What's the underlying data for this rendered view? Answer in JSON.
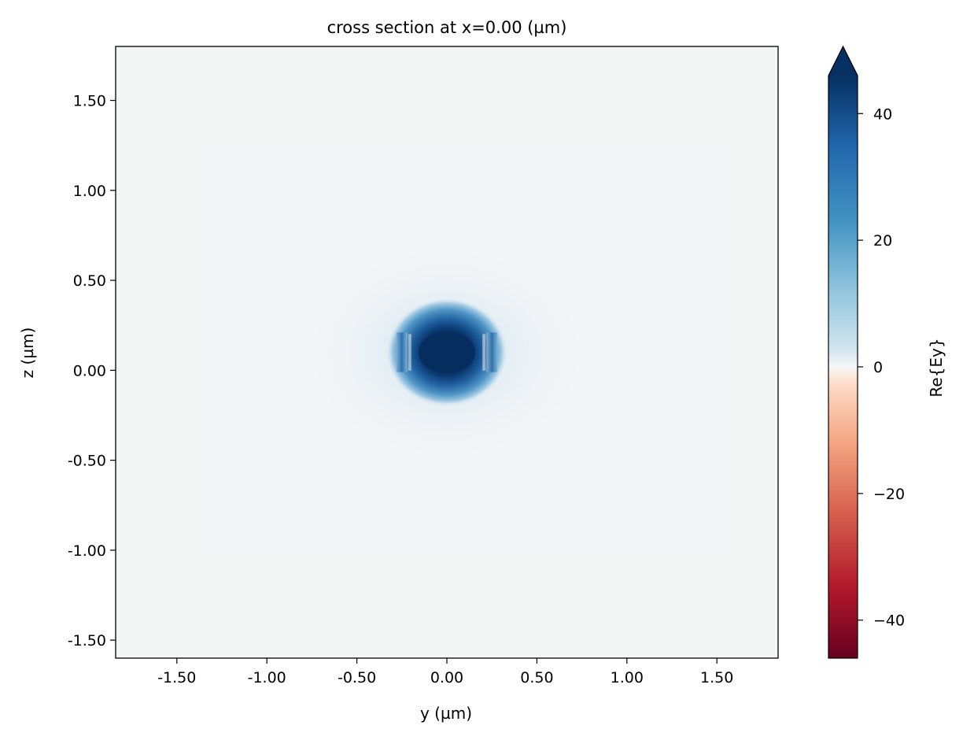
{
  "chart_data": {
    "type": "heatmap",
    "title": "cross section at x=0.00 (µm)",
    "xlabel": "y (µm)",
    "ylabel": "z (µm)",
    "xlim": [
      -1.84,
      1.84
    ],
    "ylim": [
      -1.6,
      1.8
    ],
    "xticks": [
      -1.5,
      -1.0,
      -0.5,
      0.0,
      0.5,
      1.0,
      1.5
    ],
    "xtick_labels": [
      "-1.50",
      "-1.00",
      "-0.50",
      "0.00",
      "0.50",
      "1.00",
      "1.50"
    ],
    "yticks": [
      1.5,
      1.0,
      0.5,
      0.0,
      -0.5,
      -1.0,
      -1.5
    ],
    "ytick_labels": [
      "1.50",
      "1.00",
      "0.50",
      "0.00",
      "-0.50",
      "-1.00",
      "-1.50"
    ],
    "colorbar": {
      "label": "Re{Ey}",
      "colormap": "RdBu",
      "vmin": -46,
      "vmax": 46,
      "extend": "max",
      "ticks": [
        40,
        20,
        0,
        -20,
        -40
      ],
      "tick_labels": [
        "40",
        "20",
        "0",
        "−20",
        "−40"
      ]
    },
    "field": {
      "description_values": "mode profile peak near y=0.00, z=0.10",
      "peak_value": 46,
      "peak_y": 0.0,
      "peak_z": 0.1,
      "core_half_width_y": 0.25,
      "core_half_height_z": 0.11,
      "background_value": 0
    },
    "colors": {
      "background": "#f4f5f5",
      "max": "#08306b",
      "blue_mid": "#2166ac",
      "blue_light": "#4393c3",
      "zero": "#f7f7f7",
      "red_light": "#f4a582",
      "red_mid": "#d6604d",
      "min": "#67001f"
    }
  }
}
